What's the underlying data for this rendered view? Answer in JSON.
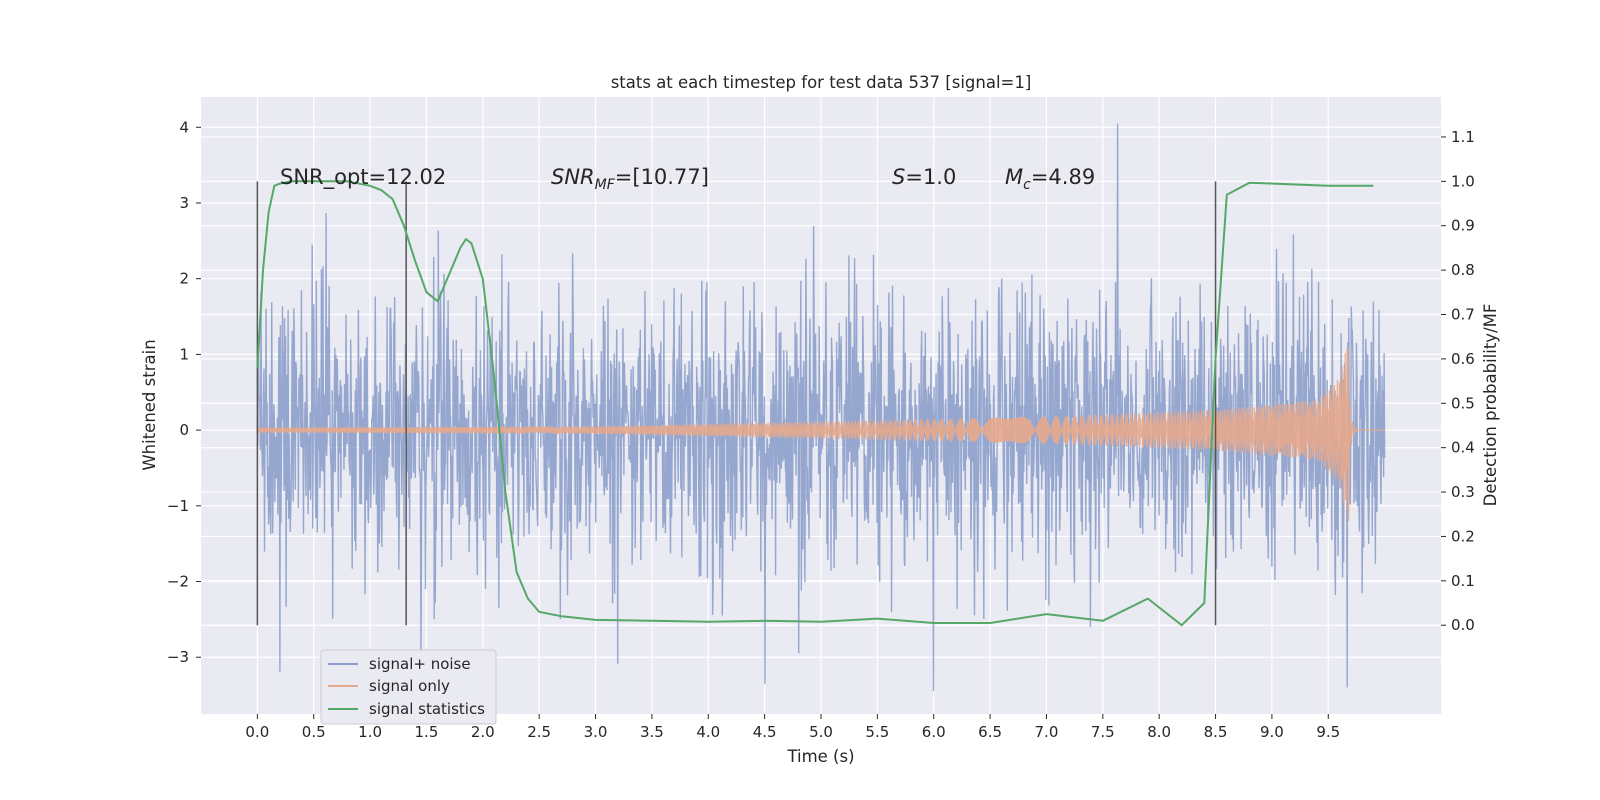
{
  "chart_data": {
    "type": "line",
    "title": "stats at each timestep for test data 537 [signal=1]",
    "xlabel": "Time (s)",
    "ylabel": "Whitened strain",
    "y2label": "Detection probability/MF",
    "xlim": [
      -0.5,
      10.5
    ],
    "ylim": [
      -3.75,
      4.4
    ],
    "y2lim": [
      -0.2,
      1.19
    ],
    "xticks": [
      "0.0",
      "0.5",
      "1.0",
      "1.5",
      "2.0",
      "2.5",
      "3.0",
      "3.5",
      "4.0",
      "4.5",
      "5.0",
      "5.5",
      "6.0",
      "6.5",
      "7.0",
      "7.5",
      "8.0",
      "8.5",
      "9.0",
      "9.5"
    ],
    "yticks": [
      "−3",
      "−2",
      "−1",
      "0",
      "1",
      "2",
      "3",
      "4"
    ],
    "y2ticks": [
      "0.0",
      "0.1",
      "0.2",
      "0.3",
      "0.4",
      "0.5",
      "0.6",
      "0.7",
      "0.8",
      "0.9",
      "1.0",
      "1.1"
    ],
    "grid": true,
    "legend": {
      "position": "lower-left",
      "entries": [
        "signal+ noise",
        "signal only",
        "signal statistics"
      ]
    },
    "annotations": {
      "snr_opt": "SNR_opt=12.02",
      "snr_mf_sym": "SNR",
      "snr_mf_sub": "MF",
      "snr_mf_val": "=[10.77]",
      "s_sym": "S",
      "s_val": "=1.0",
      "mc_sym": "M",
      "mc_sub": "c",
      "mc_val": "=4.89"
    },
    "vertical_markers_x": [
      0.0,
      1.32,
      8.5
    ],
    "series": [
      {
        "name": "signal+ noise",
        "color": "#8da0cb",
        "note": "white noise, std about 1, peaks about +4.05 near t=7.63 and −3.45 near t=6.0",
        "x_range": [
          0.0,
          10.0
        ],
        "std": 1.0,
        "peaks": [
          [
            7.63,
            4.05
          ],
          [
            6.0,
            -3.45
          ],
          [
            9.67,
            -3.4
          ],
          [
            4.5,
            -3.35
          ],
          [
            0.2,
            -3.2
          ]
        ]
      },
      {
        "name": "signal only",
        "color": "#e5a98c",
        "note": "chirp growing in amplitude, merger near t=9.68",
        "x_range": [
          0.0,
          10.0
        ],
        "amplitude_at": [
          [
            0.0,
            0.03
          ],
          [
            3.0,
            0.05
          ],
          [
            7.0,
            0.18
          ],
          [
            8.5,
            0.27
          ],
          [
            9.4,
            0.4
          ],
          [
            9.6,
            0.7
          ],
          [
            9.68,
            1.25
          ]
        ],
        "merger_time": 9.68
      },
      {
        "name": "signal statistics",
        "color": "#55a868",
        "axis": "right",
        "x": [
          0.0,
          0.05,
          0.1,
          0.15,
          0.2,
          0.3,
          0.5,
          0.8,
          1.0,
          1.1,
          1.2,
          1.3,
          1.4,
          1.5,
          1.6,
          1.7,
          1.8,
          1.85,
          1.9,
          2.0,
          2.1,
          2.2,
          2.3,
          2.4,
          2.5,
          2.7,
          3.0,
          3.5,
          4.0,
          4.5,
          5.0,
          5.5,
          6.0,
          6.5,
          7.0,
          7.5,
          7.9,
          8.2,
          8.4,
          8.5,
          8.6,
          8.8,
          9.5,
          9.9
        ],
        "y": [
          0.58,
          0.8,
          0.93,
          0.99,
          0.995,
          1.0,
          1.0,
          1.0,
          0.99,
          0.98,
          0.96,
          0.9,
          0.82,
          0.75,
          0.73,
          0.79,
          0.85,
          0.87,
          0.86,
          0.78,
          0.56,
          0.3,
          0.12,
          0.06,
          0.03,
          0.02,
          0.012,
          0.01,
          0.008,
          0.01,
          0.008,
          0.015,
          0.005,
          0.005,
          0.025,
          0.01,
          0.06,
          0.0,
          0.05,
          0.6,
          0.97,
          0.997,
          0.99,
          0.99
        ]
      }
    ]
  }
}
